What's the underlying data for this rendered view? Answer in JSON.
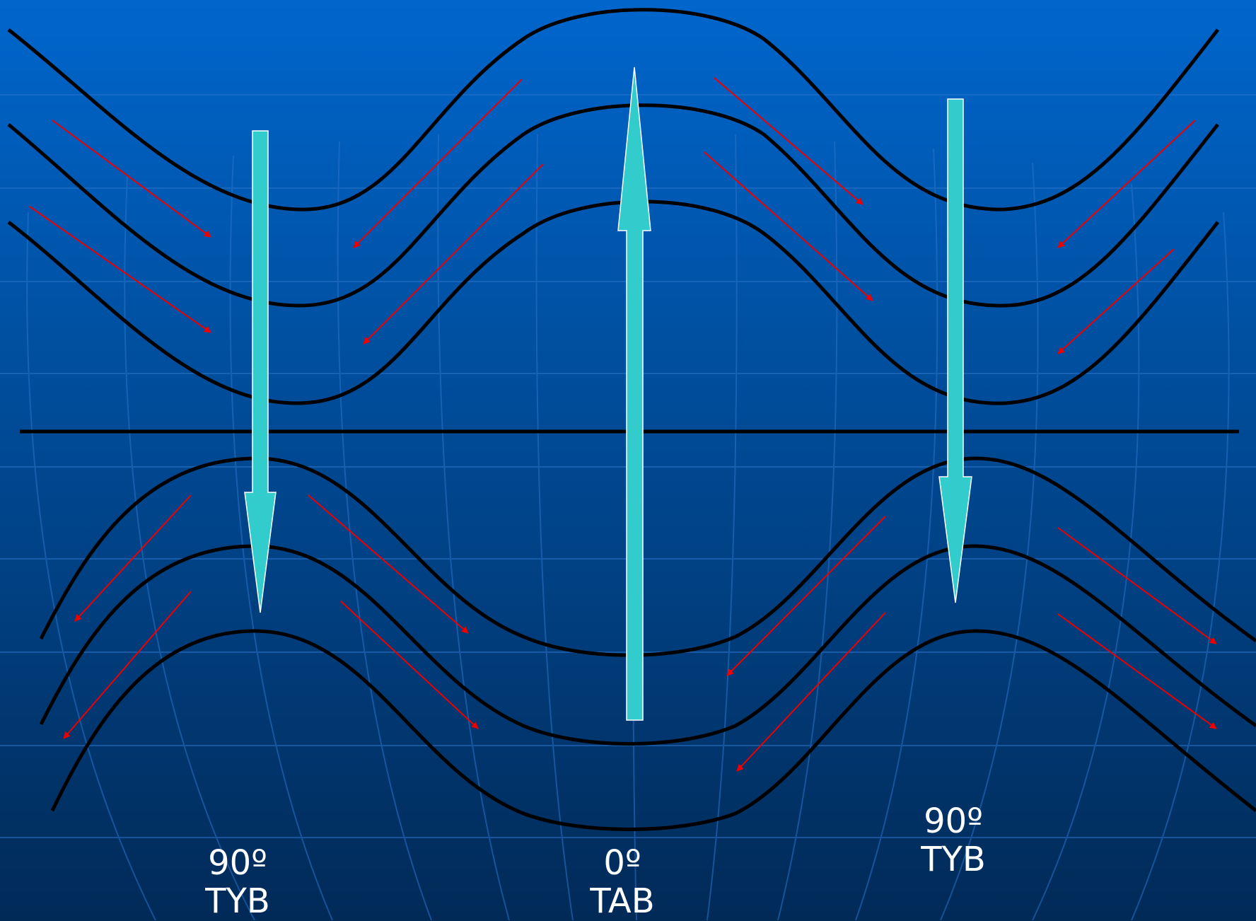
{
  "colors": {
    "background_top": "#0066cc",
    "background_bottom": "#012a57",
    "grid": "#2a73c9",
    "field_line": "#000000",
    "wind_arrow": "#ee0000",
    "vertical_arrow": "#33cccc",
    "label_text": "#ffffff"
  },
  "labels": {
    "left": {
      "angle": "90º",
      "code": "TYB"
    },
    "mid": {
      "angle": "0º",
      "code": "TAB"
    },
    "right": {
      "angle": "90º",
      "code": "TYB"
    }
  },
  "vertical_arrows": [
    {
      "name": "left-downward-arrow",
      "direction": "down"
    },
    {
      "name": "center-upward-arrow",
      "direction": "up"
    },
    {
      "name": "right-downward-arrow",
      "direction": "down"
    }
  ]
}
